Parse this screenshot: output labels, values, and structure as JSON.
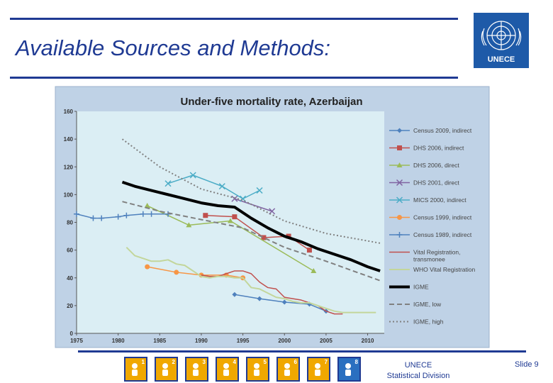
{
  "slide": {
    "title": "Available Sources and Methods:",
    "logo_label": "UNECE",
    "footer_line1": "UNECE",
    "footer_line2": "Statistical Division",
    "slide_number": "Slide 9",
    "mdg_icons": [
      {
        "number": "1",
        "icon": "hunger-bowl-icon",
        "color": "#f0a800"
      },
      {
        "number": "2",
        "icon": "education-pencil-icon",
        "color": "#f0a800"
      },
      {
        "number": "3",
        "icon": "gender-symbol-icon",
        "color": "#f0a800"
      },
      {
        "number": "4",
        "icon": "child-health-icon",
        "color": "#f0a800"
      },
      {
        "number": "5",
        "icon": "maternal-health-icon",
        "color": "#f0a800"
      },
      {
        "number": "6",
        "icon": "medicine-icon",
        "color": "#f0a800"
      },
      {
        "number": "7",
        "icon": "environment-tree-icon",
        "color": "#f0a800"
      },
      {
        "number": "8",
        "icon": "partnership-hands-icon",
        "color": "#2a6fc0"
      }
    ]
  },
  "chart_data": {
    "type": "line",
    "title": "Under-five mortality rate, Azerbaijan",
    "xlabel": "",
    "ylabel": "",
    "xlim": [
      1975,
      2012
    ],
    "ylim": [
      0,
      160
    ],
    "xticks": [
      1975,
      1980,
      1985,
      1990,
      1995,
      2000,
      2005,
      2010
    ],
    "yticks": [
      0,
      20,
      40,
      60,
      80,
      100,
      120,
      140,
      160
    ],
    "grid": false,
    "legend_position": "right",
    "series": [
      {
        "name": "Census 2009, indirect",
        "color": "#4f81bd",
        "style": "solid",
        "width": 1.5,
        "marker": "diamond",
        "x": [
          1994,
          1997,
          2000,
          2003,
          2005
        ],
        "y": [
          28,
          25,
          22.5,
          21,
          16
        ]
      },
      {
        "name": "DHS 2006, indirect",
        "color": "#c0504d",
        "style": "solid",
        "width": 1.5,
        "marker": "square",
        "x": [
          1990.5,
          1994,
          1997.5,
          2000.5,
          2003
        ],
        "y": [
          85,
          84,
          69,
          70,
          60
        ]
      },
      {
        "name": "DHS 2006, direct",
        "color": "#9bbb59",
        "style": "solid",
        "width": 1.5,
        "marker": "triangle",
        "x": [
          1983.5,
          1988.5,
          1993.5,
          2003.5
        ],
        "y": [
          92,
          78,
          81,
          45
        ]
      },
      {
        "name": "DHS 2001, direct",
        "color": "#8064a2",
        "style": "solid",
        "width": 1.5,
        "marker": "x",
        "x": [
          1994,
          1998.5
        ],
        "y": [
          97,
          88
        ]
      },
      {
        "name": "MICS 2000, indirect",
        "color": "#4bacc6",
        "style": "solid",
        "width": 1.5,
        "marker": "x",
        "x": [
          1986,
          1989,
          1992.5,
          1995,
          1997
        ],
        "y": [
          108,
          114,
          106,
          97,
          103
        ]
      },
      {
        "name": "Census 1999, indirect",
        "color": "#f79646",
        "style": "solid",
        "width": 1.5,
        "marker": "circle",
        "x": [
          1983.5,
          1987,
          1990,
          1993,
          1995
        ],
        "y": [
          48,
          44,
          42,
          42,
          40
        ]
      },
      {
        "name": "Census 1989, indirect",
        "color": "#4f81bd",
        "style": "solid",
        "width": 1.5,
        "marker": "plus",
        "x": [
          1975,
          1977,
          1978,
          1980,
          1981,
          1983,
          1984,
          1986
        ],
        "y": [
          86,
          83,
          83,
          84,
          85,
          86,
          86,
          86
        ]
      },
      {
        "name": "Vital Registration, transmonee",
        "color": "#c0504d",
        "style": "solid",
        "width": 1.5,
        "marker": "none",
        "x": [
          1990,
          1991,
          1992,
          1993,
          1994,
          1995,
          1996,
          1997,
          1998,
          1999,
          2000,
          2001,
          2002,
          2003,
          2004,
          2005,
          2006,
          2007
        ],
        "y": [
          42,
          41,
          41,
          43,
          45,
          45,
          43,
          37,
          33,
          32,
          26,
          25,
          24,
          22,
          20,
          16,
          14,
          14
        ]
      },
      {
        "name": "WHO Vital Registration",
        "color": "#c3d69b",
        "style": "solid",
        "width": 2,
        "marker": "none",
        "x": [
          1981,
          1982,
          1983,
          1984,
          1985,
          1986,
          1987,
          1988,
          1989,
          1990,
          1991,
          1992,
          1993,
          1994,
          1995,
          1996,
          1997,
          1998,
          1999,
          2000,
          2001,
          2002,
          2003,
          2004,
          2005,
          2006,
          2007,
          2008,
          2009,
          2010,
          2011
        ],
        "y": [
          62,
          56,
          54,
          52,
          52,
          53,
          50,
          49,
          45,
          41,
          40,
          41,
          41,
          40,
          40,
          33,
          32,
          29,
          26,
          25,
          23,
          22,
          22,
          20,
          18,
          16,
          15,
          15,
          15,
          15,
          15
        ]
      },
      {
        "name": "IGME",
        "color": "#000000",
        "style": "solid",
        "width": 4,
        "marker": "none",
        "x": [
          1980.5,
          1982,
          1984,
          1986,
          1988,
          1990,
          1992,
          1994,
          1996,
          1998,
          2000,
          2002,
          2004,
          2006,
          2008,
          2010,
          2011.5
        ],
        "y": [
          109,
          106,
          103,
          100,
          97,
          94,
          92,
          91,
          83,
          76,
          70,
          66,
          61,
          57,
          53,
          48,
          45
        ]
      },
      {
        "name": "IGME, low",
        "color": "#808080",
        "style": "dashed",
        "width": 2,
        "marker": "none",
        "x": [
          1980.5,
          1985,
          1990,
          1995,
          2000,
          2005,
          2011.5
        ],
        "y": [
          95,
          88,
          82,
          76,
          62,
          52,
          38
        ]
      },
      {
        "name": "IGME, high",
        "color": "#808080",
        "style": "dotted",
        "width": 2,
        "marker": "none",
        "x": [
          1980.5,
          1985,
          1990,
          1995,
          2000,
          2005,
          2011.5
        ],
        "y": [
          140,
          120,
          104,
          96,
          81,
          72,
          65
        ]
      }
    ]
  }
}
